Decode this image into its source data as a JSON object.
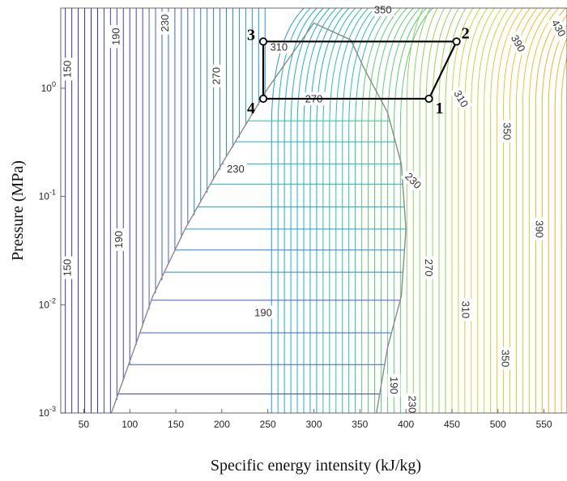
{
  "chart_data": {
    "type": "contour",
    "xlabel": "Specific energy intensity (kJ/kg)",
    "ylabel": "Pressure (MPa)",
    "x_ticks": [
      "50",
      "100",
      "150",
      "200",
      "250",
      "300",
      "350",
      "400",
      "450",
      "500",
      "550"
    ],
    "y_ticks": [
      {
        "base": "10",
        "exp": "-3",
        "value": 0.001
      },
      {
        "base": "10",
        "exp": "-2",
        "value": 0.01
      },
      {
        "base": "10",
        "exp": "-1",
        "value": 0.1
      },
      {
        "base": "10",
        "exp": "0",
        "value": 1
      }
    ],
    "xlim": [
      25,
      575
    ],
    "ylim": [
      0.001,
      5.5
    ],
    "yscale": "log",
    "contour_labels": [
      {
        "text": "150",
        "h": 32,
        "p": 1.5,
        "rot": -90
      },
      {
        "text": "190",
        "h": 85,
        "p": 3.0,
        "rot": -90
      },
      {
        "text": "230",
        "h": 138,
        "p": 4.0,
        "rot": -90
      },
      {
        "text": "270",
        "h": 194,
        "p": 1.3,
        "rot": -90
      },
      {
        "text": "310",
        "h": 262,
        "p": 2.4,
        "rot": 0
      },
      {
        "text": "270",
        "h": 300,
        "p": 0.8,
        "rot": 0
      },
      {
        "text": "350",
        "h": 375,
        "p": 5.3,
        "rot": 0
      },
      {
        "text": "230",
        "h": 215,
        "p": 0.18,
        "rot": 0
      },
      {
        "text": "190",
        "h": 88,
        "p": 0.04,
        "rot": -90
      },
      {
        "text": "150",
        "h": 32,
        "p": 0.022,
        "rot": -90
      },
      {
        "text": "190",
        "h": 245,
        "p": 0.0085,
        "rot": 0
      },
      {
        "text": "230",
        "h": 408,
        "p": 0.14,
        "rot": 45
      },
      {
        "text": "270",
        "h": 425,
        "p": 0.022,
        "rot": 90
      },
      {
        "text": "310",
        "h": 465,
        "p": 0.009,
        "rot": 90
      },
      {
        "text": "350",
        "h": 508,
        "p": 0.0032,
        "rot": 90
      },
      {
        "text": "190",
        "h": 387,
        "p": 0.0018,
        "rot": 90
      },
      {
        "text": "230",
        "h": 407,
        "p": 0.0012,
        "rot": 90
      },
      {
        "text": "310",
        "h": 460,
        "p": 0.8,
        "rot": 60
      },
      {
        "text": "350",
        "h": 510,
        "p": 0.4,
        "rot": 90
      },
      {
        "text": "390",
        "h": 522,
        "p": 2.6,
        "rot": 60
      },
      {
        "text": "390",
        "h": 545,
        "p": 0.05,
        "rot": 90
      },
      {
        "text": "430",
        "h": 566,
        "p": 3.6,
        "rot": 60
      }
    ],
    "saturation_dome": {
      "liquid_h": [
        80,
        100,
        125,
        160,
        200,
        250
      ],
      "liquid_p": [
        0.001,
        0.003,
        0.012,
        0.05,
        0.2,
        1.0
      ],
      "critical": {
        "h": 300,
        "p": 4.0
      },
      "vapor_h": [
        340,
        355,
        380,
        395,
        400,
        395,
        380,
        368
      ],
      "vapor_p": [
        2.8,
        1.5,
        0.6,
        0.2,
        0.05,
        0.012,
        0.004,
        0.001
      ]
    },
    "cycle": {
      "points": [
        {
          "label": "1",
          "h": 425,
          "p": 0.8
        },
        {
          "label": "2",
          "h": 455,
          "p": 2.7
        },
        {
          "label": "3",
          "h": 245,
          "p": 2.7
        },
        {
          "label": "4",
          "h": 245,
          "p": 0.8
        }
      ]
    }
  }
}
